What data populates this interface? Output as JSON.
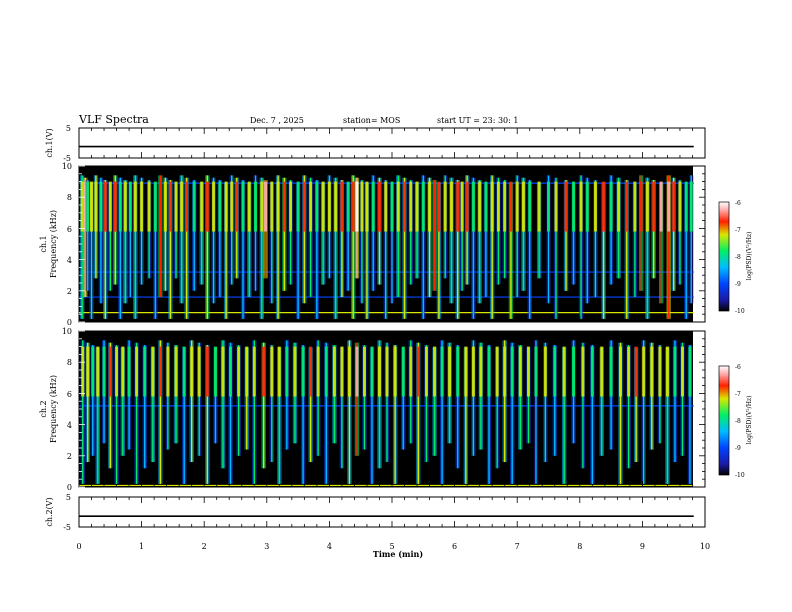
{
  "header": {
    "title": "VLF Spectra",
    "date": "Dec. 7 , 2025",
    "station": "station= MOS",
    "start": "start UT = 23: 30: 1"
  },
  "chart_data": [
    {
      "type": "line",
      "panel": "ch.1 voltage",
      "ylabel": "ch.1(V)",
      "ylim": [
        -5,
        5
      ],
      "yticks": [
        "5",
        "-5"
      ],
      "series": [
        {
          "name": "ch.1",
          "x": [
            0,
            9.82
          ],
          "values": [
            -1.2,
            -1.2
          ]
        }
      ]
    },
    {
      "type": "heatmap",
      "panel": "ch.1 spectrogram",
      "ylabel": "ch.1\nFrequency (kHz)",
      "ylim": [
        0,
        10
      ],
      "yticks": [
        "0",
        "2",
        "4",
        "6",
        "8",
        "10"
      ],
      "xlim": [
        0,
        9.82
      ],
      "colorbar": {
        "label": "log(PSD)(V²/Hz)",
        "range": [
          -10,
          -6
        ],
        "ticks": [
          "-6",
          "-7",
          "-8",
          "-9",
          "-10"
        ]
      },
      "bursts": [
        {
          "t": 0.05,
          "v": -8.2
        },
        {
          "t": 0.1,
          "v": -6.8
        },
        {
          "t": 0.14,
          "v": -9.0
        },
        {
          "t": 0.2,
          "v": -8.5
        },
        {
          "t": 0.27,
          "v": -8.0
        },
        {
          "t": 0.35,
          "v": -8.7
        },
        {
          "t": 0.42,
          "v": -7.8
        },
        {
          "t": 0.5,
          "v": -8.4
        },
        {
          "t": 0.58,
          "v": -7.6
        },
        {
          "t": 0.66,
          "v": -8.6
        },
        {
          "t": 0.74,
          "v": -8.1
        },
        {
          "t": 0.82,
          "v": -8.9
        },
        {
          "t": 0.9,
          "v": -8.2
        },
        {
          "t": 1.0,
          "v": -8.5
        },
        {
          "t": 1.12,
          "v": -8.3
        },
        {
          "t": 1.22,
          "v": -8.8
        },
        {
          "t": 1.3,
          "v": -7.4
        },
        {
          "t": 1.38,
          "v": -8.0
        },
        {
          "t": 1.46,
          "v": -7.7
        },
        {
          "t": 1.55,
          "v": -8.5
        },
        {
          "t": 1.64,
          "v": -8.1
        },
        {
          "t": 1.72,
          "v": -7.9
        },
        {
          "t": 1.84,
          "v": -8.6
        },
        {
          "t": 1.96,
          "v": -8.2
        },
        {
          "t": 2.05,
          "v": -7.6
        },
        {
          "t": 2.15,
          "v": -8.4
        },
        {
          "t": 2.25,
          "v": -8.7
        },
        {
          "t": 2.35,
          "v": -8.0
        },
        {
          "t": 2.44,
          "v": -8.3
        },
        {
          "t": 2.52,
          "v": -7.8
        },
        {
          "t": 2.62,
          "v": -8.6
        },
        {
          "t": 2.72,
          "v": -8.2
        },
        {
          "t": 2.82,
          "v": -8.9
        },
        {
          "t": 2.92,
          "v": -8.1
        },
        {
          "t": 2.98,
          "v": -6.9
        },
        {
          "t": 3.08,
          "v": -8.4
        },
        {
          "t": 3.18,
          "v": -8.0
        },
        {
          "t": 3.28,
          "v": -7.5
        },
        {
          "t": 3.38,
          "v": -8.3
        },
        {
          "t": 3.5,
          "v": -8.6
        },
        {
          "t": 3.6,
          "v": -7.9
        },
        {
          "t": 3.7,
          "v": -8.4
        },
        {
          "t": 3.8,
          "v": -8.8
        },
        {
          "t": 3.9,
          "v": -8.1
        },
        {
          "t": 4.0,
          "v": -8.5
        },
        {
          "t": 4.1,
          "v": -8.2
        },
        {
          "t": 4.2,
          "v": -7.8
        },
        {
          "t": 4.3,
          "v": -8.7
        },
        {
          "t": 4.38,
          "v": -7.6
        },
        {
          "t": 4.44,
          "v": -6.6
        },
        {
          "t": 4.52,
          "v": -8.3
        },
        {
          "t": 4.6,
          "v": -8.0
        },
        {
          "t": 4.7,
          "v": -8.6
        },
        {
          "t": 4.8,
          "v": -7.7
        },
        {
          "t": 4.9,
          "v": -8.4
        },
        {
          "t": 5.0,
          "v": -8.9
        },
        {
          "t": 5.1,
          "v": -8.1
        },
        {
          "t": 5.2,
          "v": -7.9
        },
        {
          "t": 5.3,
          "v": -8.5
        },
        {
          "t": 5.4,
          "v": -8.2
        },
        {
          "t": 5.5,
          "v": -8.7
        },
        {
          "t": 5.6,
          "v": -8.0
        },
        {
          "t": 5.68,
          "v": -7.4
        },
        {
          "t": 5.75,
          "v": -7.8
        },
        {
          "t": 5.85,
          "v": -8.4
        },
        {
          "t": 5.95,
          "v": -8.1
        },
        {
          "t": 6.05,
          "v": -7.7
        },
        {
          "t": 6.12,
          "v": -8.3
        },
        {
          "t": 6.2,
          "v": -7.9
        },
        {
          "t": 6.3,
          "v": -8.6
        },
        {
          "t": 6.4,
          "v": -8.2
        },
        {
          "t": 6.5,
          "v": -8.8
        },
        {
          "t": 6.6,
          "v": -8.0
        },
        {
          "t": 6.7,
          "v": -8.5
        },
        {
          "t": 6.8,
          "v": -8.3
        },
        {
          "t": 6.9,
          "v": -7.6
        },
        {
          "t": 7.0,
          "v": -8.4
        },
        {
          "t": 7.1,
          "v": -8.1
        },
        {
          "t": 7.2,
          "v": -8.7
        },
        {
          "t": 7.35,
          "v": -8.2
        },
        {
          "t": 7.5,
          "v": -8.9
        },
        {
          "t": 7.62,
          "v": -8.4
        },
        {
          "t": 7.78,
          "v": -7.7
        },
        {
          "t": 7.9,
          "v": -8.6
        },
        {
          "t": 8.02,
          "v": -8.3
        },
        {
          "t": 8.12,
          "v": -8.8
        },
        {
          "t": 8.25,
          "v": -8.5
        },
        {
          "t": 8.38,
          "v": -7.8
        },
        {
          "t": 8.5,
          "v": -8.6
        },
        {
          "t": 8.62,
          "v": -8.2
        },
        {
          "t": 8.75,
          "v": -7.9
        },
        {
          "t": 8.88,
          "v": -8.3
        },
        {
          "t": 8.98,
          "v": -7.4
        },
        {
          "t": 9.08,
          "v": -8.1
        },
        {
          "t": 9.18,
          "v": -7.6
        },
        {
          "t": 9.3,
          "v": -7.2
        },
        {
          "t": 9.42,
          "v": -6.9
        },
        {
          "t": 9.5,
          "v": -7.8
        },
        {
          "t": 9.6,
          "v": -8.4
        },
        {
          "t": 9.7,
          "v": -8.6
        },
        {
          "t": 9.78,
          "v": -8.9
        }
      ],
      "lines": [
        {
          "f": 0.6,
          "v": -7.8
        },
        {
          "f": 1.6,
          "v": -9.2
        },
        {
          "f": 3.2,
          "v": -9.5
        },
        {
          "f": 8.9,
          "v": -9.3
        }
      ]
    },
    {
      "type": "heatmap",
      "panel": "ch.2 spectrogram",
      "ylabel": "ch.2\nFrequency (kHz)",
      "ylim": [
        0,
        10
      ],
      "yticks": [
        "0",
        "2",
        "4",
        "6",
        "8",
        "10"
      ],
      "xlim": [
        0,
        9.82
      ],
      "colorbar": {
        "label": "log(PSD)(V²/Hz)",
        "range": [
          -10,
          -6
        ],
        "ticks": [
          "-6",
          "-7",
          "-8",
          "-9",
          "-10"
        ]
      },
      "bursts": [
        {
          "t": 0.06,
          "v": -8.4
        },
        {
          "t": 0.14,
          "v": -8.0
        },
        {
          "t": 0.22,
          "v": -8.7
        },
        {
          "t": 0.3,
          "v": -8.2
        },
        {
          "t": 0.4,
          "v": -8.6
        },
        {
          "t": 0.5,
          "v": -7.9
        },
        {
          "t": 0.6,
          "v": -8.5
        },
        {
          "t": 0.7,
          "v": -8.1
        },
        {
          "t": 0.8,
          "v": -8.8
        },
        {
          "t": 0.92,
          "v": -8.3
        },
        {
          "t": 1.05,
          "v": -8.6
        },
        {
          "t": 1.18,
          "v": -8.2
        },
        {
          "t": 1.3,
          "v": -7.8
        },
        {
          "t": 1.42,
          "v": -8.5
        },
        {
          "t": 1.55,
          "v": -8.1
        },
        {
          "t": 1.68,
          "v": -8.7
        },
        {
          "t": 1.8,
          "v": -8.0
        },
        {
          "t": 1.92,
          "v": -8.4
        },
        {
          "t": 2.05,
          "v": -7.9
        },
        {
          "t": 2.18,
          "v": -8.6
        },
        {
          "t": 2.3,
          "v": -8.2
        },
        {
          "t": 2.42,
          "v": -8.8
        },
        {
          "t": 2.55,
          "v": -8.3
        },
        {
          "t": 2.68,
          "v": -8.0
        },
        {
          "t": 2.8,
          "v": -8.5
        },
        {
          "t": 2.95,
          "v": -7.6
        },
        {
          "t": 3.08,
          "v": -8.4
        },
        {
          "t": 3.2,
          "v": -8.1
        },
        {
          "t": 3.32,
          "v": -8.7
        },
        {
          "t": 3.45,
          "v": -8.2
        },
        {
          "t": 3.58,
          "v": -8.6
        },
        {
          "t": 3.7,
          "v": -7.9
        },
        {
          "t": 3.82,
          "v": -8.4
        },
        {
          "t": 3.95,
          "v": -8.8
        },
        {
          "t": 4.08,
          "v": -8.1
        },
        {
          "t": 4.2,
          "v": -8.5
        },
        {
          "t": 4.32,
          "v": -8.0
        },
        {
          "t": 4.44,
          "v": -7.2
        },
        {
          "t": 4.56,
          "v": -8.3
        },
        {
          "t": 4.68,
          "v": -8.7
        },
        {
          "t": 4.8,
          "v": -8.2
        },
        {
          "t": 4.92,
          "v": -8.5
        },
        {
          "t": 5.05,
          "v": -8.0
        },
        {
          "t": 5.18,
          "v": -8.6
        },
        {
          "t": 5.3,
          "v": -8.3
        },
        {
          "t": 5.42,
          "v": -7.9
        },
        {
          "t": 5.55,
          "v": -8.4
        },
        {
          "t": 5.68,
          "v": -8.1
        },
        {
          "t": 5.8,
          "v": -8.6
        },
        {
          "t": 5.92,
          "v": -8.2
        },
        {
          "t": 6.05,
          "v": -8.7
        },
        {
          "t": 6.18,
          "v": -8.0
        },
        {
          "t": 6.3,
          "v": -8.5
        },
        {
          "t": 6.42,
          "v": -8.2
        },
        {
          "t": 6.55,
          "v": -8.8
        },
        {
          "t": 6.68,
          "v": -8.3
        },
        {
          "t": 6.8,
          "v": -8.0
        },
        {
          "t": 6.92,
          "v": -8.6
        },
        {
          "t": 7.05,
          "v": -8.2
        },
        {
          "t": 7.18,
          "v": -8.5
        },
        {
          "t": 7.3,
          "v": -8.9
        },
        {
          "t": 7.45,
          "v": -8.4
        },
        {
          "t": 7.6,
          "v": -8.7
        },
        {
          "t": 7.75,
          "v": -8.1
        },
        {
          "t": 7.9,
          "v": -8.6
        },
        {
          "t": 8.05,
          "v": -8.3
        },
        {
          "t": 8.2,
          "v": -8.8
        },
        {
          "t": 8.35,
          "v": -8.2
        },
        {
          "t": 8.5,
          "v": -8.6
        },
        {
          "t": 8.65,
          "v": -8.0
        },
        {
          "t": 8.78,
          "v": -8.4
        },
        {
          "t": 8.9,
          "v": -7.9
        },
        {
          "t": 9.02,
          "v": -8.3
        },
        {
          "t": 9.15,
          "v": -8.0
        },
        {
          "t": 9.28,
          "v": -8.5
        },
        {
          "t": 9.4,
          "v": -8.2
        },
        {
          "t": 9.52,
          "v": -8.6
        },
        {
          "t": 9.64,
          "v": -8.3
        },
        {
          "t": 9.76,
          "v": -8.8
        }
      ],
      "lines": [
        {
          "f": 0.1,
          "v": -8.0
        },
        {
          "f": 5.2,
          "v": -9.4
        }
      ]
    },
    {
      "type": "line",
      "panel": "ch.2 voltage",
      "ylabel": "ch.2(V)",
      "ylim": [
        -5,
        5
      ],
      "yticks": [
        "5",
        "-5"
      ],
      "series": [
        {
          "name": "ch.2",
          "x": [
            0,
            9.82
          ],
          "values": [
            -1.4,
            -1.4
          ]
        }
      ]
    }
  ],
  "xaxis": {
    "label": "Time (min)",
    "xlim": [
      0,
      10
    ],
    "ticks": [
      "0",
      "1",
      "2",
      "3",
      "4",
      "5",
      "6",
      "7",
      "8",
      "9",
      "10"
    ]
  },
  "colors": {
    "background": "#000000",
    "scale": [
      "#1a1aa6",
      "#0044ff",
      "#00bbff",
      "#00ee66",
      "#d8e800",
      "#ff2000",
      "#ffb0b0",
      "#ffffff"
    ]
  }
}
